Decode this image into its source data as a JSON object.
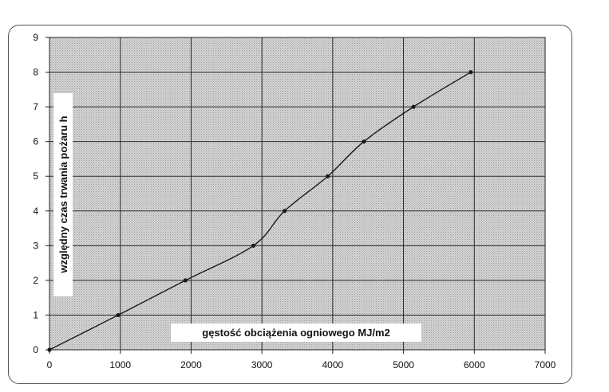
{
  "chart_data": {
    "type": "line",
    "title": "",
    "xlabel": "gęstość obciążenia ogniowego MJ/m2",
    "ylabel": "względny czas trwania pożaru h",
    "xlim": [
      0,
      7000
    ],
    "ylim": [
      0,
      9
    ],
    "x_ticks": [
      "0",
      "1000",
      "2000",
      "3000",
      "4000",
      "5000",
      "6000",
      "7000"
    ],
    "y_ticks": [
      "0",
      "1",
      "2",
      "3",
      "4",
      "5",
      "6",
      "7",
      "8",
      "9"
    ],
    "grid": true,
    "legend": "none",
    "series": [
      {
        "x": [
          0,
          970,
          1920,
          2880,
          3320,
          3930,
          4440,
          5140,
          5950
        ],
        "y": [
          0,
          1,
          2,
          3,
          4,
          5,
          6,
          7,
          8
        ]
      }
    ],
    "colors": {
      "plot_bg": "#c8c8c8",
      "line": "#1a1a1a",
      "grid": "#2a2a2a"
    }
  }
}
